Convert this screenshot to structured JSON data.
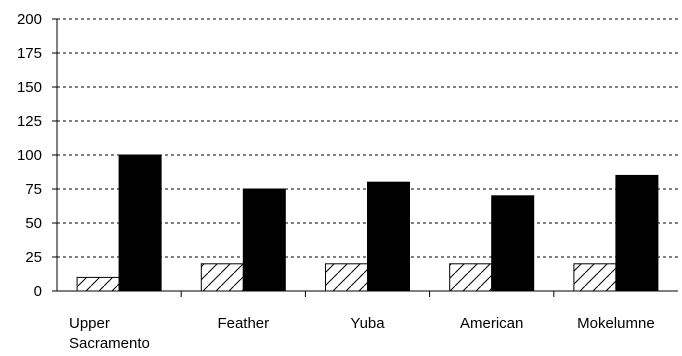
{
  "chart_data": {
    "type": "bar",
    "title": "",
    "xlabel": "",
    "ylabel": "",
    "ylim": [
      0,
      200
    ],
    "yticks": [
      0,
      25,
      50,
      75,
      100,
      125,
      150,
      175,
      200
    ],
    "grid": "horizontal-dashed",
    "categories": [
      [
        "Upper",
        "Sacramento"
      ],
      [
        "Feather"
      ],
      [
        "Yuba"
      ],
      [
        "American"
      ],
      [
        "Mokelumne"
      ]
    ],
    "series": [
      {
        "values": [
          10,
          20,
          20,
          20,
          20
        ],
        "fill": "hatched",
        "color": "#ffffff"
      },
      {
        "values": [
          100,
          75,
          80,
          70,
          85
        ],
        "fill": "solid",
        "color": "#000000"
      }
    ]
  }
}
